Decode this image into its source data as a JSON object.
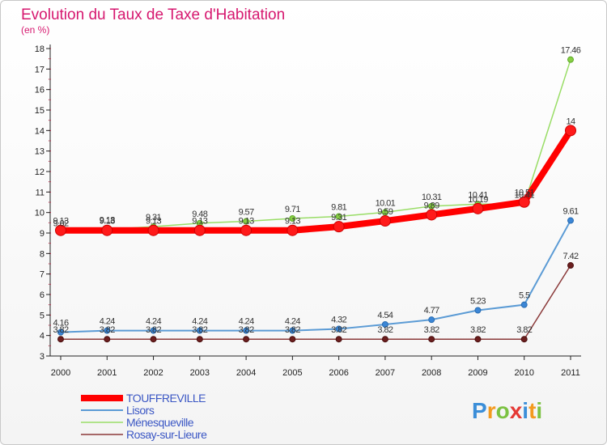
{
  "chart_data": {
    "type": "line",
    "title": "Evolution du Taux de Taxe d'Habitation",
    "subtitle": "(en %)",
    "x": [
      "2000",
      "2001",
      "2002",
      "2003",
      "2004",
      "2005",
      "2006",
      "2007",
      "2008",
      "2009",
      "2010",
      "2011"
    ],
    "ylim": [
      3,
      18
    ],
    "yticks": [
      3,
      4,
      5,
      6,
      7,
      8,
      9,
      10,
      11,
      12,
      13,
      14,
      15,
      16,
      17,
      18
    ],
    "grid": false,
    "legend_position": "bottom-left",
    "series": [
      {
        "name": "TOUFFREVILLE",
        "color": "#ff0000",
        "values": [
          9.13,
          9.13,
          9.13,
          9.13,
          9.13,
          9.13,
          9.31,
          9.59,
          9.89,
          10.19,
          10.51,
          14
        ],
        "labels": [
          "9.13",
          "9.13",
          "9.13",
          "9.13",
          "9.13",
          "9.13",
          "9.31",
          "9.59",
          "9.89",
          "10.19",
          "10.51",
          "14"
        ]
      },
      {
        "name": "Lisors",
        "color": "#5b9bd5",
        "values": [
          4.16,
          4.24,
          4.24,
          4.24,
          4.24,
          4.24,
          4.32,
          4.54,
          4.77,
          5.23,
          5.5,
          9.61
        ],
        "labels": [
          "4.16",
          "4.24",
          "4.24",
          "4.24",
          "4.24",
          "4.24",
          "4.32",
          "4.54",
          "4.77",
          "5.23",
          "5.5",
          "9.61"
        ]
      },
      {
        "name": "Ménesqueville",
        "color": "#99dd66",
        "values": [
          9.02,
          9.18,
          9.31,
          9.48,
          9.57,
          9.71,
          9.81,
          10.01,
          10.31,
          10.41,
          10.41,
          17.46
        ],
        "labels": [
          "9.02",
          "9.18",
          "9.31",
          "9.48",
          "9.57",
          "9.71",
          "9.81",
          "10.01",
          "10.31",
          "10.41",
          "10.41",
          "17.46"
        ]
      },
      {
        "name": "Rosay-sur-Lieure",
        "color": "#8b3a3a",
        "values": [
          3.82,
          3.82,
          3.82,
          3.82,
          3.82,
          3.82,
          3.82,
          3.82,
          3.82,
          3.82,
          3.82,
          7.42
        ],
        "labels": [
          "3.82",
          "3.82",
          "3.82",
          "3.82",
          "3.82",
          "3.82",
          "3.82",
          "3.82",
          "3.82",
          "3.82",
          "3.82",
          "7.42"
        ]
      }
    ]
  },
  "logo": {
    "letters": [
      "P",
      "r",
      "o",
      "x",
      "i",
      "t",
      "i"
    ],
    "colors": [
      "#3b8ed8",
      "#f39a1e",
      "#7cc242",
      "#e53935",
      "#3b8ed8",
      "#f39a1e",
      "#7cc242"
    ]
  }
}
